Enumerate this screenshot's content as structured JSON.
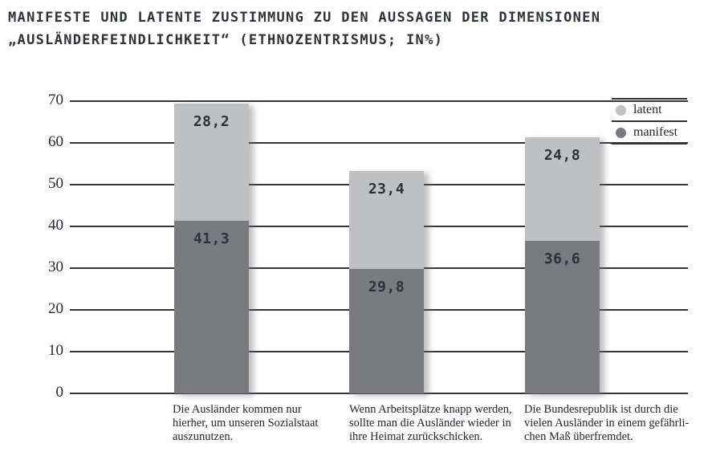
{
  "title": {
    "line1": "MANIFESTE UND LATENTE ZUSTIMMUNG ZU DEN AUSSAGEN DER DIMENSIONEN",
    "line2": "„AUSLÄNDERFEINDLICHKEIT“ (ETHNOZENTRISMUS; IN%)"
  },
  "colors": {
    "latent": "#bfc0c2",
    "manifest": "#7a7b7f",
    "axis_line": "#31353e",
    "text": "#2e323c"
  },
  "legend": {
    "items": [
      {
        "label": "latent",
        "color": "#bfc0c2"
      },
      {
        "label": "manifest",
        "color": "#7a7b7f"
      }
    ]
  },
  "chart_data": {
    "type": "bar",
    "stacked": true,
    "title": "MANIFESTE UND LATENTE ZUSTIMMUNG ZU DEN AUSSAGEN DER DIMENSIONEN „AUSLÄNDERFEINDLICHKEIT“ (ETHNOZENTRISMUS; IN%)",
    "categories": [
      "Die Ausländer kommen nur\nhierher, um unseren Sozialstaat\nauszunutzen.",
      "Wenn Arbeitsplätze knapp werden,\nsollte man die Ausländer wieder in\nihre Heimat zurückschicken.",
      "Die Bundesrepublik ist durch die\nvielen Ausländer in einem gefährli-\nchen Maß überfremdet."
    ],
    "series": [
      {
        "name": "manifest",
        "color": "#7a7b7f",
        "values": [
          41.3,
          29.8,
          36.6
        ],
        "labels": [
          "41,3",
          "29,8",
          "36,6"
        ]
      },
      {
        "name": "latent",
        "color": "#bfc0c2",
        "values": [
          28.2,
          23.4,
          24.8
        ],
        "labels": [
          "28,2",
          "23,4",
          "24,8"
        ]
      }
    ],
    "totals": [
      69.5,
      53.2,
      61.4
    ],
    "ylabel": "",
    "xlabel": "",
    "ylim": [
      0,
      70
    ],
    "yticks": [
      0,
      10,
      20,
      30,
      40,
      50,
      60,
      70
    ],
    "grid": true,
    "legend_position": "top-right",
    "legend_entries": [
      "latent",
      "manifest"
    ],
    "value_decimal_separator": ","
  }
}
